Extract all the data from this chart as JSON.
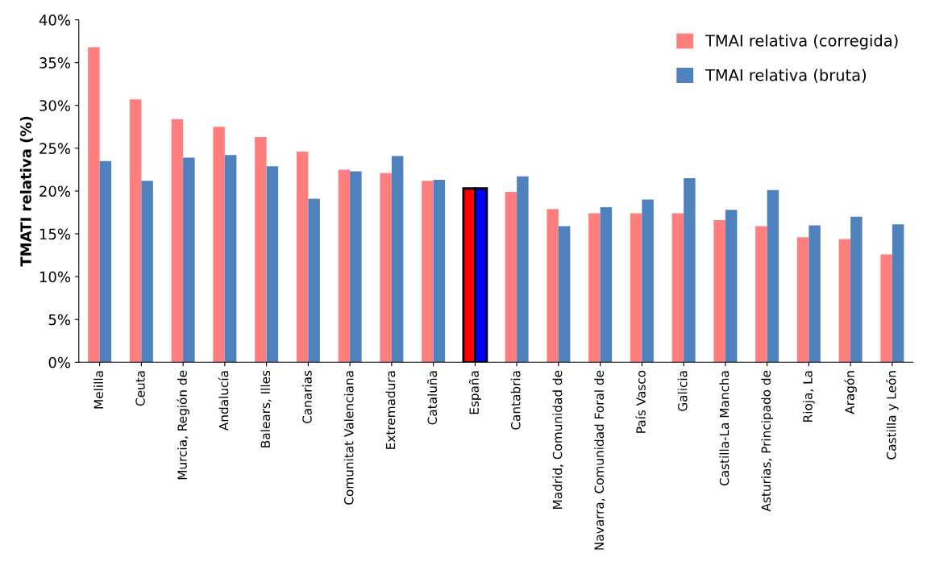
{
  "chart_data": {
    "type": "bar",
    "ylabel": "TMATI relativa (%)",
    "categories": [
      "Melilla",
      "Ceuta",
      "Murcia, Región de",
      "Andalucía",
      "Balears, Illes",
      "Canarias",
      "Comunitat Valenciana",
      "Extremadura",
      "Cataluña",
      "España",
      "Cantabria",
      "Madrid, Comunidad de",
      "Navarra, Comunidad Foral de",
      "País Vasco",
      "Galicia",
      "Castilla-La Mancha",
      "Asturias, Principado de",
      "Rioja, La",
      "Aragón",
      "Castilla y León"
    ],
    "series": [
      {
        "name": "TMAI relativa (corregida)",
        "color": "#ff7f7f",
        "colors": [
          "#ff7f7f",
          "#ff7f7f",
          "#ff7f7f",
          "#ff7f7f",
          "#ff7f7f",
          "#ff7f7f",
          "#ff7f7f",
          "#ff7f7f",
          "#ff7f7f",
          "#ff0000",
          "#ff7f7f",
          "#ff7f7f",
          "#ff7f7f",
          "#ff7f7f",
          "#ff7f7f",
          "#ff7f7f",
          "#ff7f7f",
          "#ff7f7f",
          "#ff7f7f",
          "#ff7f7f"
        ],
        "values": [
          36.8,
          30.7,
          28.4,
          27.5,
          26.3,
          24.6,
          22.5,
          22.1,
          21.2,
          20.3,
          19.9,
          17.9,
          17.4,
          17.4,
          17.4,
          16.6,
          15.9,
          14.6,
          14.4,
          12.6
        ]
      },
      {
        "name": "TMAI relativa (bruta)",
        "color": "#4f81bd",
        "colors": [
          "#4f81bd",
          "#4f81bd",
          "#4f81bd",
          "#4f81bd",
          "#4f81bd",
          "#4f81bd",
          "#4f81bd",
          "#4f81bd",
          "#4f81bd",
          "#0000ff",
          "#4f81bd",
          "#4f81bd",
          "#4f81bd",
          "#4f81bd",
          "#4f81bd",
          "#4f81bd",
          "#4f81bd",
          "#4f81bd",
          "#4f81bd",
          "#4f81bd"
        ],
        "values": [
          23.5,
          21.2,
          23.9,
          24.2,
          22.9,
          19.1,
          22.3,
          24.1,
          21.3,
          20.3,
          21.7,
          15.9,
          18.1,
          19.0,
          21.5,
          17.8,
          20.1,
          16.0,
          17.0,
          16.1
        ]
      }
    ],
    "ylim": [
      0,
      40
    ],
    "yticks": [
      {
        "value": 0,
        "label": "0%"
      },
      {
        "value": 5,
        "label": "5%"
      },
      {
        "value": 10,
        "label": "10%"
      },
      {
        "value": 15,
        "label": "15%"
      },
      {
        "value": 20,
        "label": "20%"
      },
      {
        "value": 25,
        "label": "25%"
      },
      {
        "value": 30,
        "label": "30%"
      },
      {
        "value": 35,
        "label": "35%"
      },
      {
        "value": 40,
        "label": "40%"
      }
    ],
    "grid": false,
    "legend": "top right"
  }
}
